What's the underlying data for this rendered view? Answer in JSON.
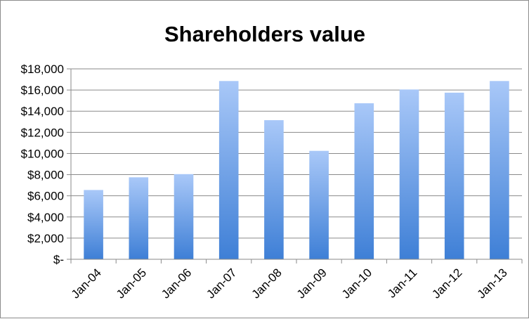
{
  "chart_data": {
    "type": "bar",
    "title": "Shareholders value",
    "xlabel": "",
    "ylabel": "",
    "categories": [
      "Jan-04",
      "Jan-05",
      "Jan-06",
      "Jan-07",
      "Jan-08",
      "Jan-09",
      "Jan-10",
      "Jan-11",
      "Jan-12",
      "Jan-13"
    ],
    "values": [
      6550,
      7750,
      8050,
      16850,
      13150,
      10250,
      14750,
      16050,
      15750,
      16850
    ],
    "ylim": [
      0,
      18000
    ],
    "y_ticks": [
      0,
      2000,
      4000,
      6000,
      8000,
      10000,
      12000,
      14000,
      16000,
      18000
    ],
    "y_tick_labels": [
      "$-",
      "$2,000",
      "$4,000",
      "$6,000",
      "$8,000",
      "$10,000",
      "$12,000",
      "$14,000",
      "$16,000",
      "$18,000"
    ],
    "grid": true,
    "legend": "none",
    "colors": {
      "bar_top": "#a9c8f8",
      "bar_bottom": "#3e7fd6",
      "grid": "#8a8a8a",
      "border": "#8c8c8c"
    }
  }
}
